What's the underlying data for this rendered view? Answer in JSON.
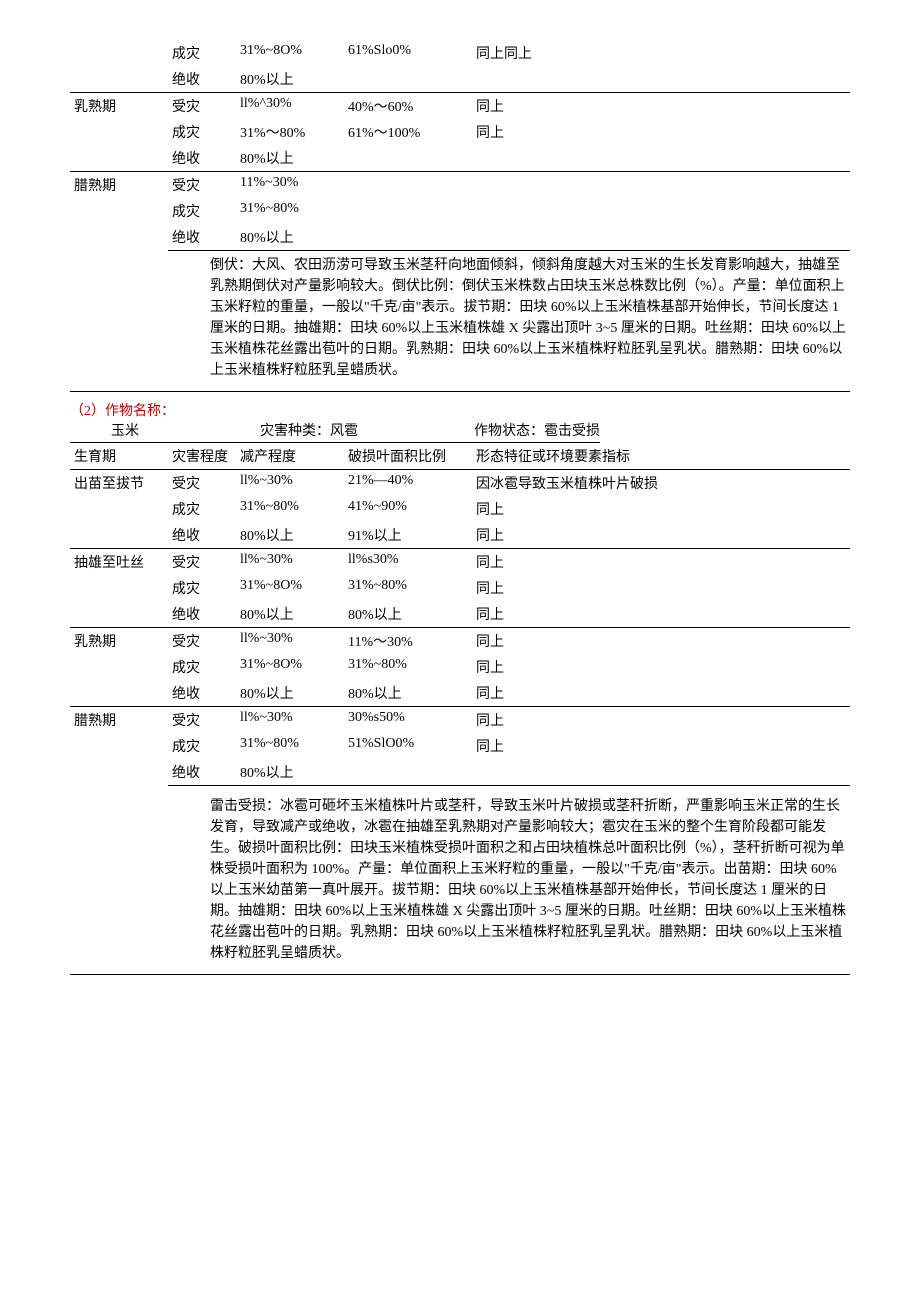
{
  "table1": {
    "rows": [
      {
        "stage": "",
        "level": "成灾",
        "reduce": "31%~8O%",
        "ratio": "61%Slo0%",
        "note": "同上同上",
        "border_top": false,
        "rowspan_stage": 0
      },
      {
        "stage": "",
        "level": "绝收",
        "reduce": "80%以上",
        "ratio": "",
        "note": "",
        "border_top": false,
        "rowspan_stage": 0
      },
      {
        "stage": "乳熟期",
        "level": "受灾",
        "reduce": "ll%^30%",
        "ratio": "40%～60%",
        "note": "同上",
        "border_top": true,
        "rowspan_stage": 3
      },
      {
        "stage": "",
        "level": "成灾",
        "reduce": "31%～80%",
        "ratio": "61%～100%",
        "note": "同上",
        "border_top": false,
        "rowspan_stage": 0
      },
      {
        "stage": "",
        "level": "绝收",
        "reduce": "80%以上",
        "ratio": "",
        "note": "",
        "border_top": false,
        "rowspan_stage": 0
      },
      {
        "stage": "腊熟期",
        "level": "受灾",
        "reduce": "11%~30%",
        "ratio": "",
        "note": "",
        "border_top": true,
        "rowspan_stage": 3
      },
      {
        "stage": "",
        "level": "成灾",
        "reduce": "31%~80%",
        "ratio": "",
        "note": "",
        "border_top": false,
        "rowspan_stage": 0
      },
      {
        "stage": "",
        "level": "绝收",
        "reduce": "80%以上",
        "ratio": "",
        "note": "",
        "border_top": false,
        "rowspan_stage": 0
      }
    ],
    "note": "倒伏：大风、农田沥涝可导致玉米茎秆向地面倾斜，倾斜角度越大对玉米的生长发育影响越大，抽雄至乳熟期倒伏对产量影响较大。倒伏比例：倒伏玉米株数占田块玉米总株数比例（%）。产量：单位面积上玉米籽粒的重量，一般以\"千克/亩\"表示。拔节期：田块 60%以上玉米植株基部开始伸长，节间长度达 1 厘米的日期。抽雄期：田块 60%以上玉米植株雄 X 尖露出顶叶 3~5 厘米的日期。吐丝期：田块 60%以上玉米植株花丝露出苞叶的日期。乳熟期：田块 60%以上玉米植株籽粒胚乳呈乳状。腊熟期：田块 60%以上玉米植株籽粒胚乳呈蜡质状。"
  },
  "header2": {
    "title": "（2）作物名称：",
    "crop": "玉米",
    "disaster_label": "灾害种类：",
    "disaster": "风雹",
    "status_label": "作物状态：",
    "status": "雹击受损"
  },
  "table2": {
    "headers": [
      "生育期",
      "灾害程度",
      "减产程度",
      "破损叶面积比例",
      "形态特征或环境要素指标"
    ],
    "rows": [
      {
        "stage": "出苗至拔节",
        "level": "受灾",
        "reduce": "ll%~30%",
        "ratio": "21%—40%",
        "note": "因冰雹导致玉米植株叶片破损",
        "border_top": true,
        "rowspan_stage": 3
      },
      {
        "stage": "",
        "level": "成灾",
        "reduce": "31%~80%",
        "ratio": "41%~90%",
        "note": "同上",
        "border_top": false,
        "rowspan_stage": 0
      },
      {
        "stage": "",
        "level": "绝收",
        "reduce": "80%以上",
        "ratio": "91%以上",
        "note": "同上",
        "border_top": false,
        "rowspan_stage": 0
      },
      {
        "stage": "抽雄至吐丝",
        "level": "受灾",
        "reduce": "ll%~30%",
        "ratio": "ll%s30%",
        "note": "同上",
        "border_top": true,
        "rowspan_stage": 3
      },
      {
        "stage": "",
        "level": "成灾",
        "reduce": "31%~8O%",
        "ratio": "31%~80%",
        "note": "同上",
        "border_top": false,
        "rowspan_stage": 0
      },
      {
        "stage": "",
        "level": "绝收",
        "reduce": "80%以上",
        "ratio": "80%以上",
        "note": "同上",
        "border_top": false,
        "rowspan_stage": 0
      },
      {
        "stage": "乳熟期",
        "level": "受灾",
        "reduce": "ll%~30%",
        "ratio": "11%～30%",
        "note": "同上",
        "border_top": true,
        "rowspan_stage": 3
      },
      {
        "stage": "",
        "level": "成灾",
        "reduce": "31%~8O%",
        "ratio": "31%~80%",
        "note": "同上",
        "border_top": false,
        "rowspan_stage": 0
      },
      {
        "stage": "",
        "level": "绝收",
        "reduce": "80%以上",
        "ratio": "80%以上",
        "note": "同上",
        "border_top": false,
        "rowspan_stage": 0
      },
      {
        "stage": "腊熟期",
        "level": "受灾",
        "reduce": "ll%~30%",
        "ratio": "30%s50%",
        "note": "同上",
        "border_top": true,
        "rowspan_stage": 3
      },
      {
        "stage": "",
        "level": "成灾",
        "reduce": "31%~80%",
        "ratio": "51%SlO0%",
        "note": "同上",
        "border_top": false,
        "rowspan_stage": 0
      },
      {
        "stage": "",
        "level": "绝收",
        "reduce": "80%以上",
        "ratio": "",
        "note": "",
        "border_top": false,
        "rowspan_stage": 0
      }
    ],
    "note": "雷击受损：冰雹可砸坏玉米植株叶片或茎秆，导致玉米叶片破损或茎秆折断，严重影响玉米正常的生长发育，导致减产或绝收，冰雹在抽雄至乳熟期对产量影响较大；雹灾在玉米的整个生育阶段都可能发生。破损叶面积比例：田块玉米植株受损叶面积之和占田块植株总叶面积比例（%），茎秆折断可视为单株受损叶面积为 100%。产量：单位面积上玉米籽粒的重量，一般以\"千克/亩\"表示。出苗期：田块 60%以上玉米幼苗第一真叶展开。拔节期：田块 60%以上玉米植株基部开始伸长，节间长度达 1 厘米的日期。抽雄期：田块 60%以上玉米植株雄 X 尖露出顶叶 3~5 厘米的日期。吐丝期：田块 60%以上玉米植株花丝露出苞叶的日期。乳熟期：田块 60%以上玉米植株籽粒胚乳呈乳状。腊熟期：田块 60%以上玉米植株籽粒胚乳呈蜡质状。"
  }
}
